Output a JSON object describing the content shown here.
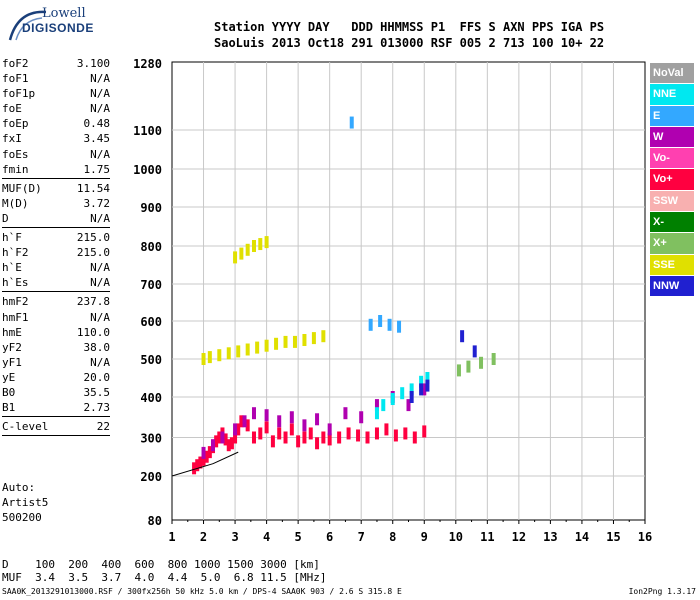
{
  "logo": {
    "line1": "Lowell",
    "line2": "DIGISONDE"
  },
  "header": {
    "line1": "Station YYYY DAY   DDD HHMMSS P1  FFS S AXN PPS IGA PS",
    "line2": "SaoLuis 2013 Oct18 291 013000 RSF 005 2 713 100 10+ 22"
  },
  "params": {
    "group1": [
      {
        "name": "foF2",
        "value": "3.100"
      },
      {
        "name": "foF1",
        "value": "N/A"
      },
      {
        "name": "foF1p",
        "value": "N/A"
      },
      {
        "name": "foE",
        "value": "N/A"
      },
      {
        "name": "foEp",
        "value": "0.48"
      },
      {
        "name": "fxI",
        "value": "3.45"
      },
      {
        "name": "foEs",
        "value": "N/A"
      },
      {
        "name": "fmin",
        "value": "1.75"
      }
    ],
    "group2": [
      {
        "name": "MUF(D)",
        "value": "11.54"
      },
      {
        "name": "M(D)",
        "value": "3.72"
      },
      {
        "name": "D",
        "value": "N/A"
      }
    ],
    "group3": [
      {
        "name": "h`F",
        "value": "215.0"
      },
      {
        "name": "h`F2",
        "value": "215.0"
      },
      {
        "name": "h`E",
        "value": "N/A"
      },
      {
        "name": "h`Es",
        "value": "N/A"
      }
    ],
    "group4": [
      {
        "name": "hmF2",
        "value": "237.8"
      },
      {
        "name": "hmF1",
        "value": "N/A"
      },
      {
        "name": "hmE",
        "value": "110.0"
      },
      {
        "name": "yF2",
        "value": "38.0"
      },
      {
        "name": "yF1",
        "value": "N/A"
      },
      {
        "name": "yE",
        "value": "20.0"
      },
      {
        "name": "B0",
        "value": "35.5"
      },
      {
        "name": "B1",
        "value": "2.73"
      }
    ],
    "group5": [
      {
        "name": "C-level",
        "value": "22"
      }
    ]
  },
  "auto": {
    "line1": "Auto:",
    "line2": "Artist5",
    "line3": "500200"
  },
  "legend": [
    {
      "label": "NoVal",
      "color": "#a0a0a0"
    },
    {
      "label": "NNE",
      "color": "#00e8f0"
    },
    {
      "label": "E",
      "color": "#33a8ff"
    },
    {
      "label": "W",
      "color": "#b000b0"
    },
    {
      "label": "Vo-",
      "color": "#ff40b0"
    },
    {
      "label": "Vo+",
      "color": "#ff0040"
    },
    {
      "label": "SSW",
      "color": "#f8b0b0"
    },
    {
      "label": "X-",
      "color": "#008000"
    },
    {
      "label": "X+",
      "color": "#80c060"
    },
    {
      "label": "SSE",
      "color": "#e0e000"
    },
    {
      "label": "NNW",
      "color": "#2020d0"
    }
  ],
  "muf_table": {
    "d_line": "D    100  200  400  600  800 1000 1500 3000 [km]",
    "muf_line": "MUF  3.4  3.5  3.7  4.0  4.4  5.0  6.8 11.5 [MHz]"
  },
  "footer": {
    "text": "SAA0K_2013291013000.RSF / 300fx256h 50 kHz 5.0 km / DPS-4 SAA0K 903 / 2.6 S 315.8 E",
    "version": "Ion2Png 1.3.17"
  },
  "chart_data": {
    "type": "scatter",
    "xlabel": "",
    "ylabel": "",
    "xlim": [
      1,
      16
    ],
    "ylim": [
      80,
      1280
    ],
    "x_ticks": [
      "1",
      "2",
      "3",
      "4",
      "5",
      "6",
      "7",
      "8",
      "9",
      "10",
      "11",
      "12",
      "13",
      "14",
      "15",
      "16"
    ],
    "y_ticks": [
      "80",
      "200",
      "300",
      "400",
      "500",
      "600",
      "700",
      "800",
      "900",
      "1000",
      "1100",
      "1280"
    ],
    "y_tick_values": [
      80,
      200,
      300,
      400,
      500,
      600,
      700,
      800,
      900,
      1000,
      1100,
      1280
    ],
    "grid": true,
    "series": [
      {
        "name": "Vo+",
        "x": [
          1.7,
          1.8,
          1.9,
          2.0,
          2.1,
          2.2,
          2.3,
          2.4,
          2.5,
          2.6,
          2.7,
          2.8,
          2.9,
          3.0,
          3.1,
          3.2,
          3.4,
          3.6,
          3.8,
          4.0,
          4.2,
          4.4,
          4.6,
          4.8,
          5.0,
          5.2,
          5.4,
          5.6,
          5.8,
          6.0,
          6.3,
          6.6,
          6.9,
          7.2,
          7.5,
          7.8,
          8.1,
          8.4,
          8.7,
          9.0
        ],
        "y": [
          220,
          228,
          235,
          242,
          250,
          262,
          275,
          290,
          300,
          310,
          295,
          280,
          285,
          300,
          320,
          340,
          330,
          300,
          310,
          325,
          290,
          310,
          300,
          320,
          290,
          300,
          310,
          285,
          300,
          295,
          300,
          310,
          305,
          300,
          310,
          320,
          305,
          310,
          300,
          315
        ]
      },
      {
        "name": "W",
        "x": [
          2.0,
          2.3,
          2.6,
          3.0,
          3.3,
          3.6,
          4.0,
          4.4,
          4.8,
          5.2,
          5.6,
          6.0,
          6.5,
          7.0,
          7.5,
          8.0,
          8.5,
          9.0
        ],
        "y": [
          260,
          280,
          300,
          320,
          340,
          360,
          355,
          340,
          350,
          330,
          345,
          320,
          360,
          350,
          380,
          400,
          380,
          420
        ]
      },
      {
        "name": "NNE",
        "x": [
          7.5,
          7.7,
          8.0,
          8.3,
          8.6,
          8.9,
          9.1
        ],
        "y": [
          360,
          380,
          395,
          410,
          420,
          440,
          450
        ]
      },
      {
        "name": "SSE",
        "x": [
          2.0,
          2.2,
          2.5,
          2.8,
          3.1,
          3.4,
          3.7,
          4.0,
          4.3,
          4.6,
          4.9,
          5.2,
          5.5,
          5.8,
          3.0,
          3.2,
          3.4,
          3.6,
          3.8,
          4.0
        ],
        "y": [
          500,
          505,
          510,
          515,
          520,
          525,
          530,
          535,
          540,
          545,
          545,
          550,
          555,
          560,
          770,
          780,
          790,
          800,
          805,
          810
        ]
      },
      {
        "name": "E",
        "x": [
          7.3,
          7.6,
          7.9,
          8.2,
          6.7
        ],
        "y": [
          590,
          600,
          590,
          585,
          1120
        ]
      },
      {
        "name": "NNW",
        "x": [
          8.6,
          8.9,
          9.1,
          10.2,
          10.6
        ],
        "y": [
          400,
          420,
          430,
          560,
          520
        ]
      },
      {
        "name": "X+",
        "x": [
          10.1,
          10.4,
          10.8,
          11.2
        ],
        "y": [
          470,
          480,
          490,
          500
        ]
      }
    ]
  }
}
